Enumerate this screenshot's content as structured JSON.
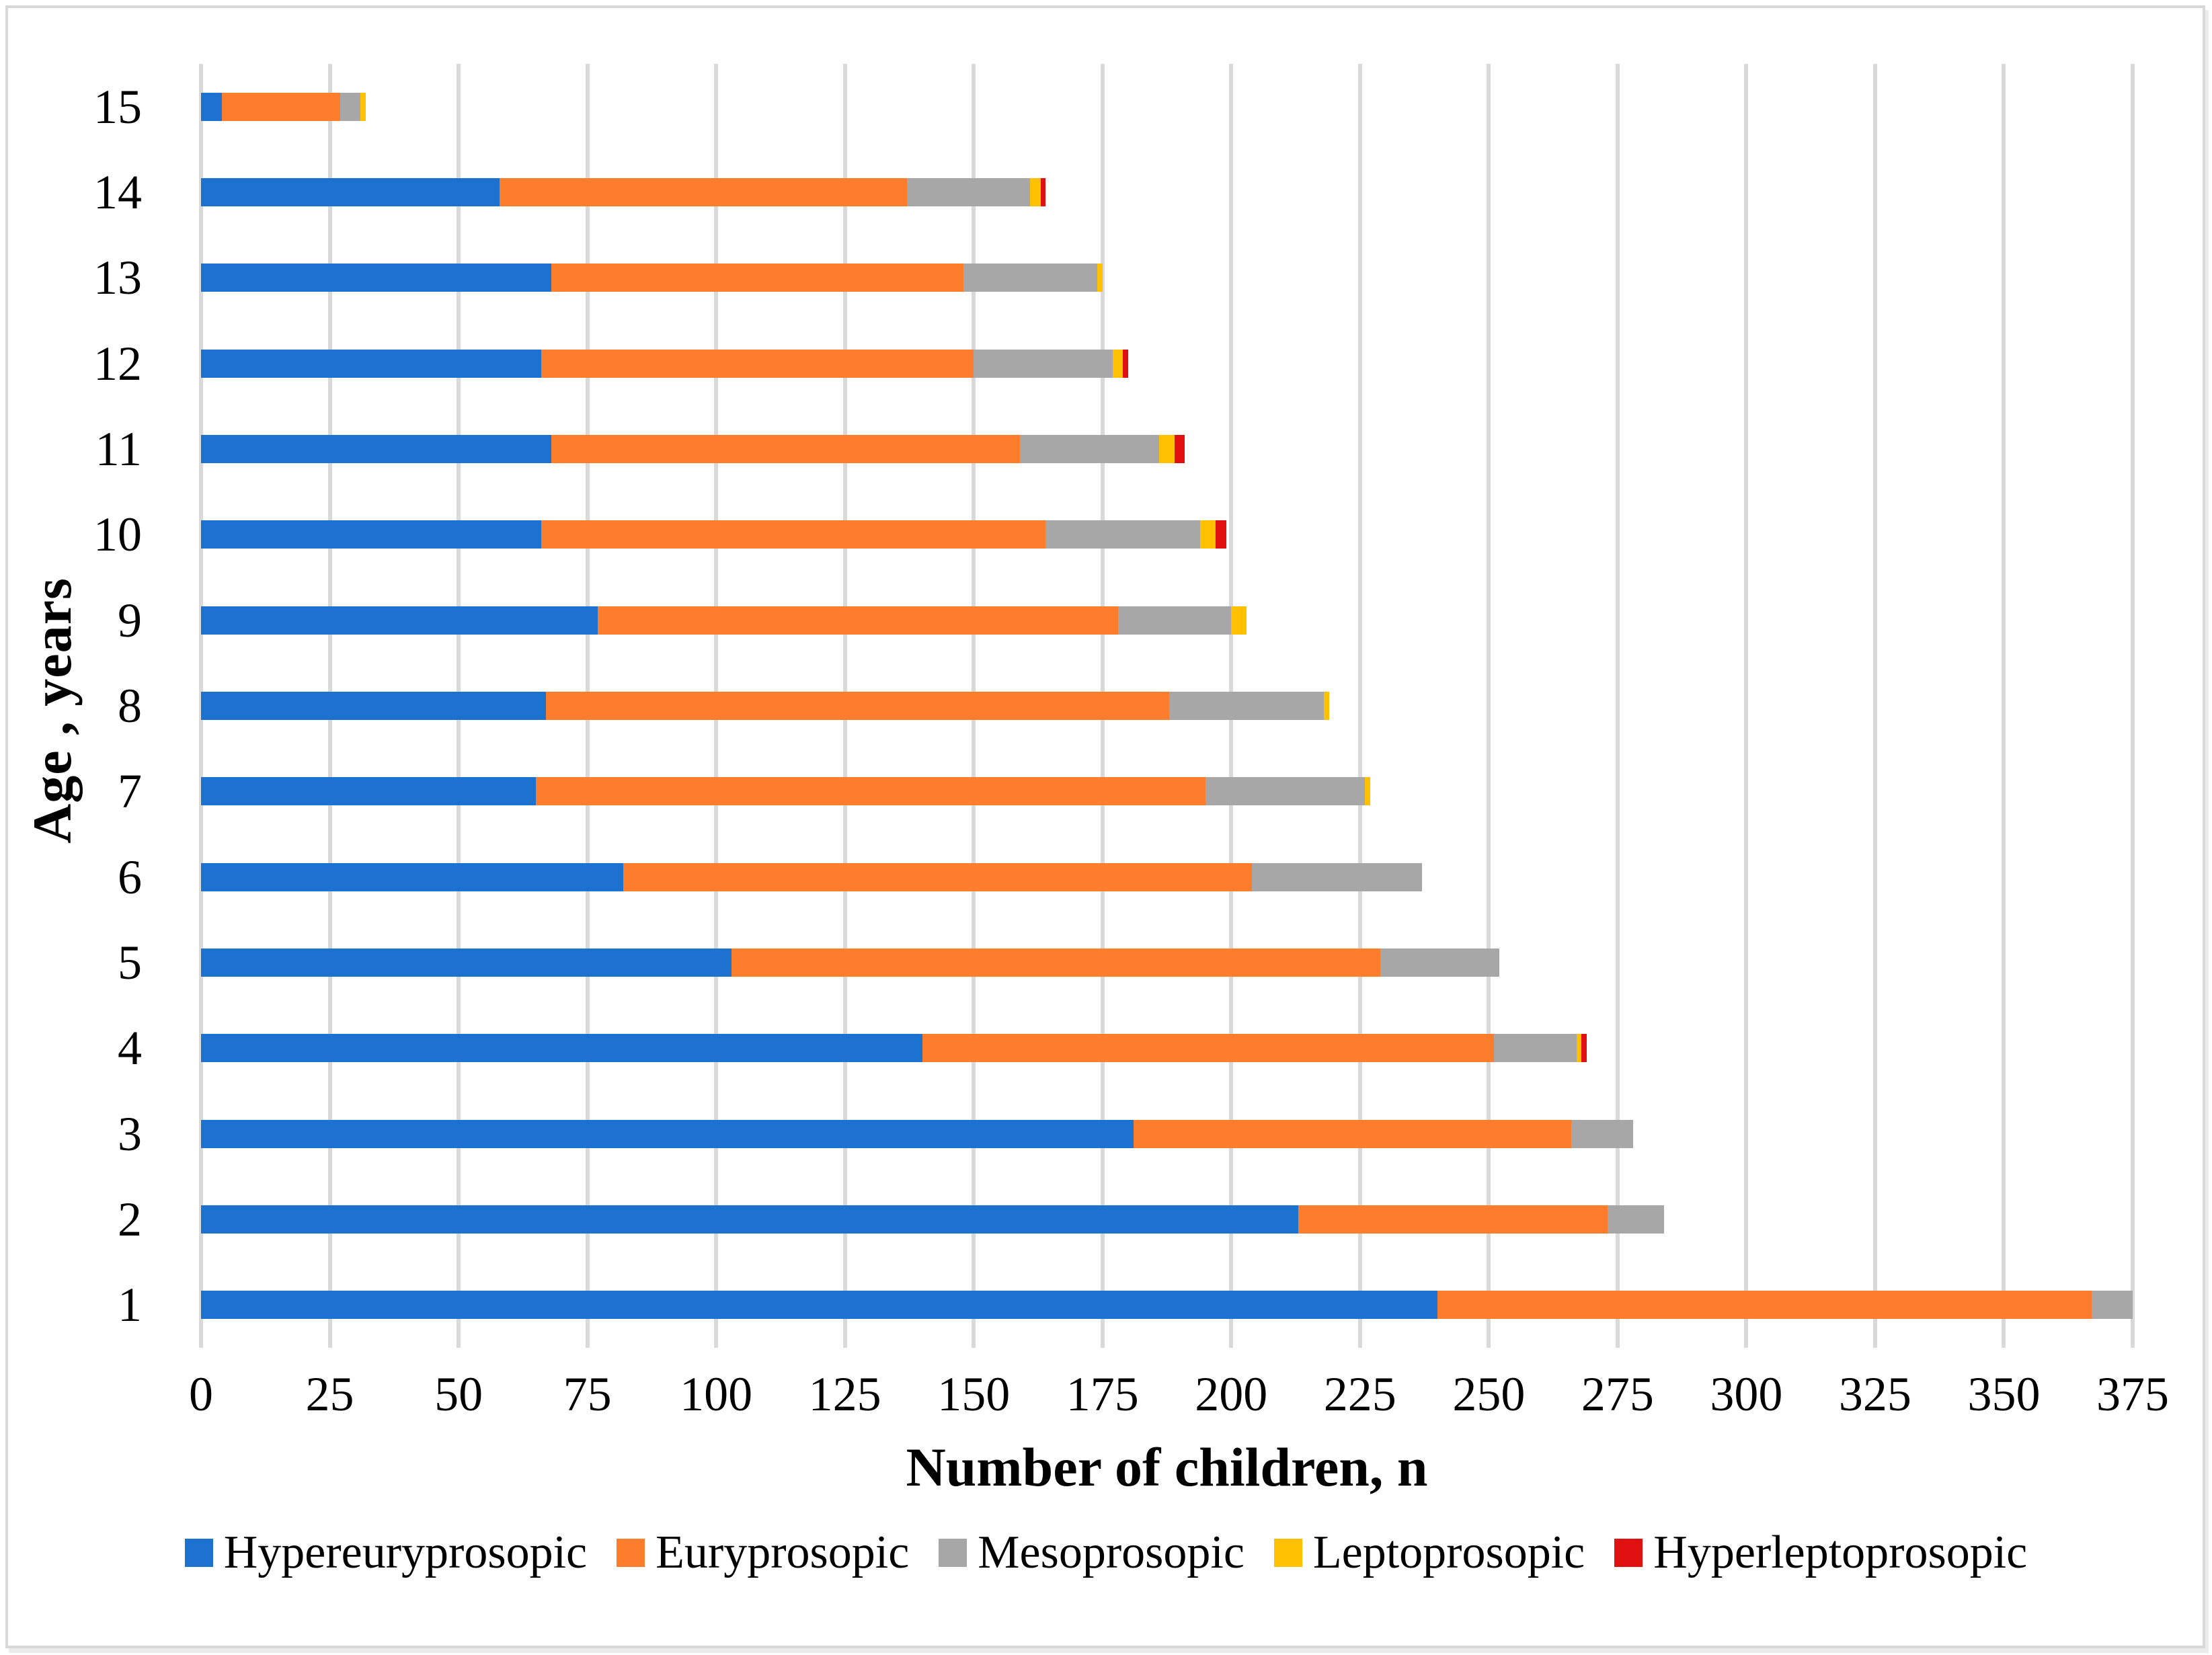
{
  "figure": {
    "y_axis_title": "Age , years",
    "x_axis_title": "Number of children, n"
  },
  "chart_data": {
    "type": "bar",
    "orientation": "horizontal",
    "stacked": true,
    "title": "",
    "xlabel": "Number of children, n",
    "ylabel": "Age , years",
    "xlim": [
      0,
      375
    ],
    "x_ticks": [
      0,
      25,
      50,
      75,
      100,
      125,
      150,
      175,
      200,
      225,
      250,
      275,
      300,
      325,
      350,
      375
    ],
    "grid": "vertical",
    "gridline_color": "#D9D9D9",
    "legend_position": "bottom",
    "categories": [
      "15",
      "14",
      "13",
      "12",
      "11",
      "10",
      "9",
      "8",
      "7",
      "6",
      "5",
      "4",
      "3",
      "2",
      "1"
    ],
    "series": [
      {
        "name": "Hypereuryprosopic",
        "color": "#1C72CE",
        "values": [
          4,
          58,
          68,
          66,
          68,
          66,
          77,
          67,
          65,
          82,
          103,
          140,
          181,
          213,
          240
        ]
      },
      {
        "name": "Euryprosopic",
        "color": "#FC7D2B",
        "values": [
          23,
          79,
          80,
          84,
          91,
          98,
          101,
          121,
          130,
          122,
          126,
          111,
          85,
          60,
          127
        ]
      },
      {
        "name": "Mesoprosopic",
        "color": "#A7A7A7",
        "values": [
          4,
          24,
          26,
          27,
          27,
          30,
          22,
          30,
          31,
          33,
          23,
          16,
          12,
          11,
          8
        ]
      },
      {
        "name": "Leptoprosopic",
        "color": "#FFC000",
        "values": [
          1,
          2,
          1,
          2,
          3,
          3,
          3,
          1,
          1,
          0,
          0,
          1,
          0,
          0,
          0
        ]
      },
      {
        "name": "Hyperleptoprosopic",
        "color": "#E01010",
        "values": [
          0,
          1,
          0,
          1,
          2,
          2,
          0,
          0,
          0,
          0,
          0,
          1,
          0,
          0,
          0
        ]
      }
    ]
  }
}
